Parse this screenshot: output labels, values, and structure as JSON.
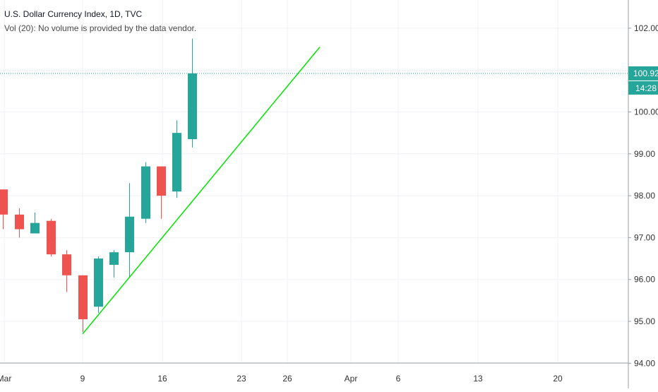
{
  "header": {
    "symbol_label": "U.S. Dollar Currency Index, 1D, TVC",
    "volume_label": "Vol (20): No volume is provided by the data vendor."
  },
  "price_badge": {
    "value": "100.92",
    "countdown": "14:28",
    "color": "#26a69a"
  },
  "colors": {
    "up": "#26a69a",
    "down": "#ef5350",
    "trendline": "#00e600",
    "grid": "#eef1f5",
    "axis_text": "#333333"
  },
  "chart_data": {
    "type": "candlestick",
    "title": "U.S. Dollar Currency Index, 1D, TVC",
    "x_tick_labels": [
      "Mar",
      "9",
      "16",
      "23",
      "26",
      "Apr",
      "6",
      "13",
      "20"
    ],
    "y_tick_labels": [
      "94.00",
      "95.00",
      "96.00",
      "97.00",
      "98.00",
      "99.00",
      "100.00",
      "102.00"
    ],
    "ylim": [
      94.0,
      102.3
    ],
    "last_price": 100.92,
    "candles": [
      {
        "date": "Mar 2",
        "open": 98.15,
        "high": 98.15,
        "low": 97.2,
        "close": 97.55
      },
      {
        "date": "Mar 3",
        "open": 97.55,
        "high": 97.7,
        "low": 97.0,
        "close": 97.2
      },
      {
        "date": "Mar 4",
        "open": 97.1,
        "high": 97.6,
        "low": 97.1,
        "close": 97.35
      },
      {
        "date": "Mar 5",
        "open": 97.4,
        "high": 97.45,
        "low": 96.55,
        "close": 96.6
      },
      {
        "date": "Mar 6",
        "open": 96.6,
        "high": 96.7,
        "low": 95.7,
        "close": 96.1
      },
      {
        "date": "Mar 9",
        "open": 96.1,
        "high": 96.1,
        "low": 94.75,
        "close": 95.05
      },
      {
        "date": "Mar 10",
        "open": 95.35,
        "high": 96.55,
        "low": 95.2,
        "close": 96.5
      },
      {
        "date": "Mar 11",
        "open": 96.35,
        "high": 96.7,
        "low": 96.05,
        "close": 96.65
      },
      {
        "date": "Mar 12",
        "open": 96.65,
        "high": 98.3,
        "low": 96.05,
        "close": 97.5
      },
      {
        "date": "Mar 13",
        "open": 97.45,
        "high": 98.8,
        "low": 97.35,
        "close": 98.7
      },
      {
        "date": "Mar 16",
        "open": 98.7,
        "high": 98.7,
        "low": 97.45,
        "close": 98.0
      },
      {
        "date": "Mar 17",
        "open": 98.1,
        "high": 99.8,
        "low": 97.95,
        "close": 99.5
      },
      {
        "date": "Mar 18",
        "open": 99.35,
        "high": 101.75,
        "low": 99.15,
        "close": 100.92
      }
    ],
    "trendline": {
      "start": {
        "date": "Mar 9",
        "value": 94.7
      },
      "end": {
        "date": "Mar 27",
        "value": 101.55
      }
    },
    "grid": true
  }
}
